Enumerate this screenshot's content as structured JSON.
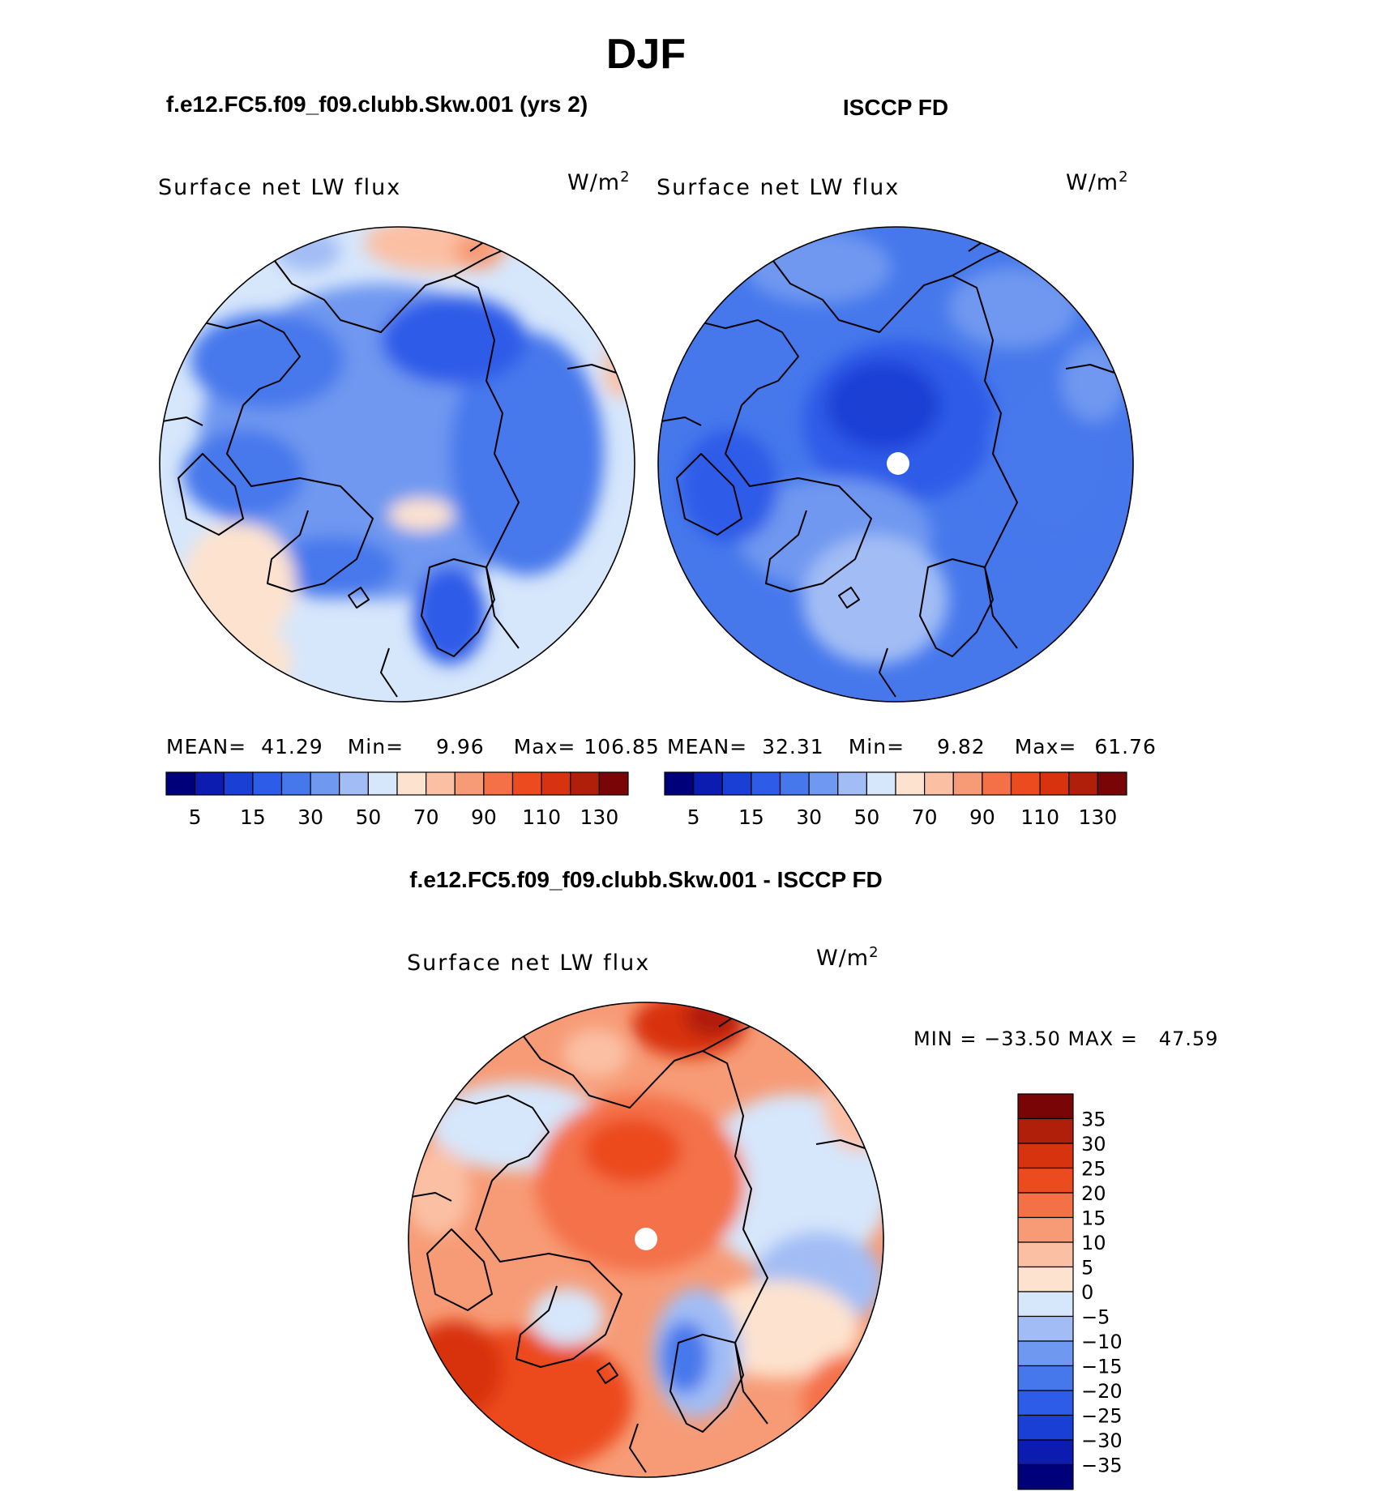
{
  "figure": {
    "season": "DJF",
    "left_case": "f.e12.FC5.f09_f09.clubb.Skw.001 (yrs 2)",
    "right_case": "ISCCP FD",
    "diff_case": "f.e12.FC5.f09_f09.clubb.Skw.001 - ISCCP FD"
  },
  "chart_data": [
    {
      "type": "heatmap",
      "projection": "north polar stereographic",
      "title": "f.e12.FC5.f09_f09.clubb.Skw.001 (yrs 2)",
      "variable": "Surface net LW flux",
      "units": "W/m",
      "units_sup": "2",
      "stats": {
        "mean_label": "MEAN=",
        "mean": "41.29",
        "min_label": "Min=",
        "min": "9.96",
        "max_label": "Max=",
        "max": "106.85"
      },
      "colorbar": {
        "orientation": "horizontal",
        "levels": [
          5,
          10,
          15,
          20,
          30,
          40,
          50,
          60,
          70,
          80,
          90,
          100,
          110,
          120,
          130
        ],
        "tick_labels": [
          "5",
          "15",
          "30",
          "50",
          "70",
          "90",
          "110",
          "130"
        ],
        "colors": [
          "#00007a",
          "#0c1bb0",
          "#1a3fd4",
          "#2d5ce8",
          "#4678ec",
          "#6f98f0",
          "#a2bdf5",
          "#d6e6fb",
          "#fde3cf",
          "#fbc0a4",
          "#f79b76",
          "#f47148",
          "#ec4a1f",
          "#d8330f",
          "#b01f0a",
          "#7a0506"
        ]
      }
    },
    {
      "type": "heatmap",
      "projection": "north polar stereographic",
      "title": "ISCCP FD",
      "variable": "Surface net LW flux",
      "units": "W/m",
      "units_sup": "2",
      "stats": {
        "mean_label": "MEAN=",
        "mean": "32.31",
        "min_label": "Min=",
        "min": "9.82",
        "max_label": "Max=",
        "max": "61.76"
      },
      "colorbar": {
        "orientation": "horizontal",
        "levels": [
          5,
          10,
          15,
          20,
          30,
          40,
          50,
          60,
          70,
          80,
          90,
          100,
          110,
          120,
          130
        ],
        "tick_labels": [
          "5",
          "15",
          "30",
          "50",
          "70",
          "90",
          "110",
          "130"
        ],
        "colors": [
          "#00007a",
          "#0c1bb0",
          "#1a3fd4",
          "#2d5ce8",
          "#4678ec",
          "#6f98f0",
          "#a2bdf5",
          "#d6e6fb",
          "#fde3cf",
          "#fbc0a4",
          "#f79b76",
          "#f47148",
          "#ec4a1f",
          "#d8330f",
          "#b01f0a",
          "#7a0506"
        ]
      }
    },
    {
      "type": "heatmap",
      "projection": "north polar stereographic",
      "title": "f.e12.FC5.f09_f09.clubb.Skw.001 - ISCCP FD",
      "variable": "Surface net LW flux",
      "units": "W/m",
      "units_sup": "2",
      "stats": {
        "minmax_text": "MIN = −33.50 MAX =   47.59"
      },
      "colorbar": {
        "orientation": "vertical",
        "levels": [
          35,
          30,
          25,
          20,
          15,
          10,
          5,
          0,
          -5,
          -10,
          -15,
          -20,
          -25,
          -30,
          -35
        ],
        "tick_labels": [
          "35",
          "30",
          "25",
          "20",
          "15",
          "10",
          "5",
          "0",
          "−5",
          "−10",
          "−15",
          "−20",
          "−25",
          "−30",
          "−35"
        ],
        "colors": [
          "#7a0506",
          "#b01f0a",
          "#d8330f",
          "#ec4a1f",
          "#f47148",
          "#f79b76",
          "#fbc0a4",
          "#fde3cf",
          "#d6e6fb",
          "#a2bdf5",
          "#6f98f0",
          "#4678ec",
          "#2d5ce8",
          "#1a3fd4",
          "#0c1bb0",
          "#00007a"
        ]
      }
    }
  ]
}
